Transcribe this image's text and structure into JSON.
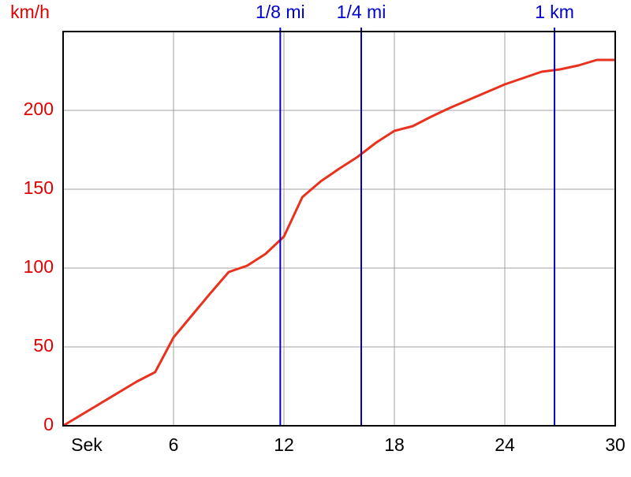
{
  "chart_data": {
    "type": "line",
    "x_label": "Sek",
    "y_label": "km/h",
    "x": [
      0,
      4,
      5,
      6,
      7,
      8,
      9,
      10,
      11,
      12,
      13,
      14,
      15,
      16,
      17,
      18,
      19,
      20,
      21,
      22,
      23,
      24,
      25,
      26,
      27,
      28,
      29,
      30
    ],
    "series": [
      {
        "color": "#e8321e",
        "values": [
          0,
          28,
          34,
          56,
          70,
          84,
          97.5,
          101.5,
          109,
          120,
          145,
          155,
          163,
          170.5,
          179.5,
          187,
          190,
          196,
          201.5,
          206.5,
          211.5,
          216.5,
          220.5,
          224.5,
          226,
          228.5,
          232,
          232
        ]
      }
    ],
    "xlim": [
      0,
      30
    ],
    "xticks": [
      6,
      12,
      18,
      24,
      30
    ],
    "ylim": [
      0,
      250
    ],
    "yticks": [
      0,
      50,
      100,
      150,
      200
    ],
    "grid": true,
    "y_color": "#e00000",
    "annotation_color": "#0000cc",
    "annotations": [
      {
        "x": 11.8,
        "label": "1/8 mi"
      },
      {
        "x": 16.2,
        "label": "1/4 mi"
      },
      {
        "x": 26.7,
        "label": "1 km"
      }
    ]
  }
}
